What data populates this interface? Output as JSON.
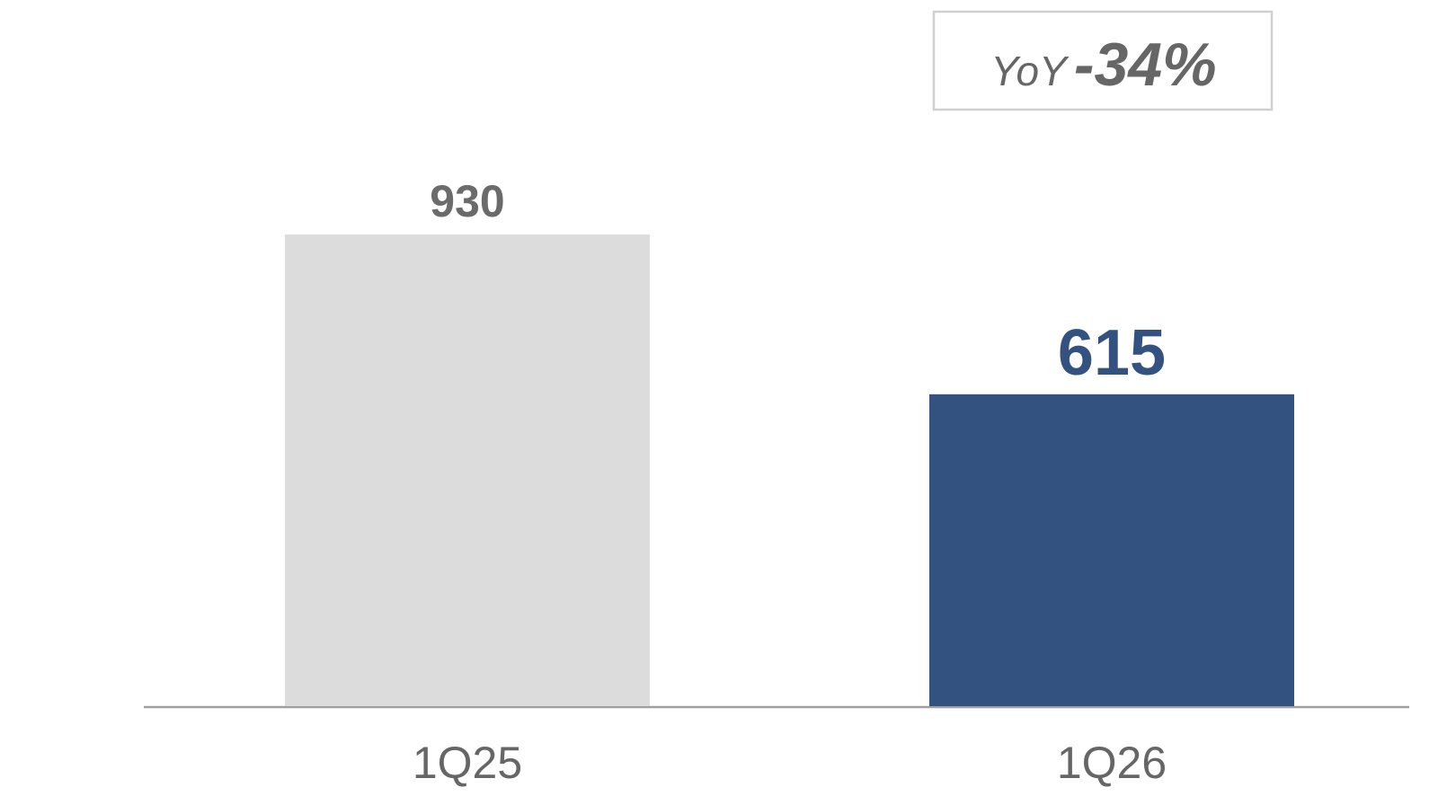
{
  "chart_data": {
    "type": "bar",
    "categories": [
      "1Q25",
      "1Q26"
    ],
    "values": [
      930,
      615
    ],
    "colors": [
      "#dcdcdc",
      "#33527f"
    ],
    "label_colors": [
      "#6b6b6b",
      "#33527f"
    ],
    "annotation": {
      "prefix": "YoY",
      "change": "-34%"
    }
  }
}
